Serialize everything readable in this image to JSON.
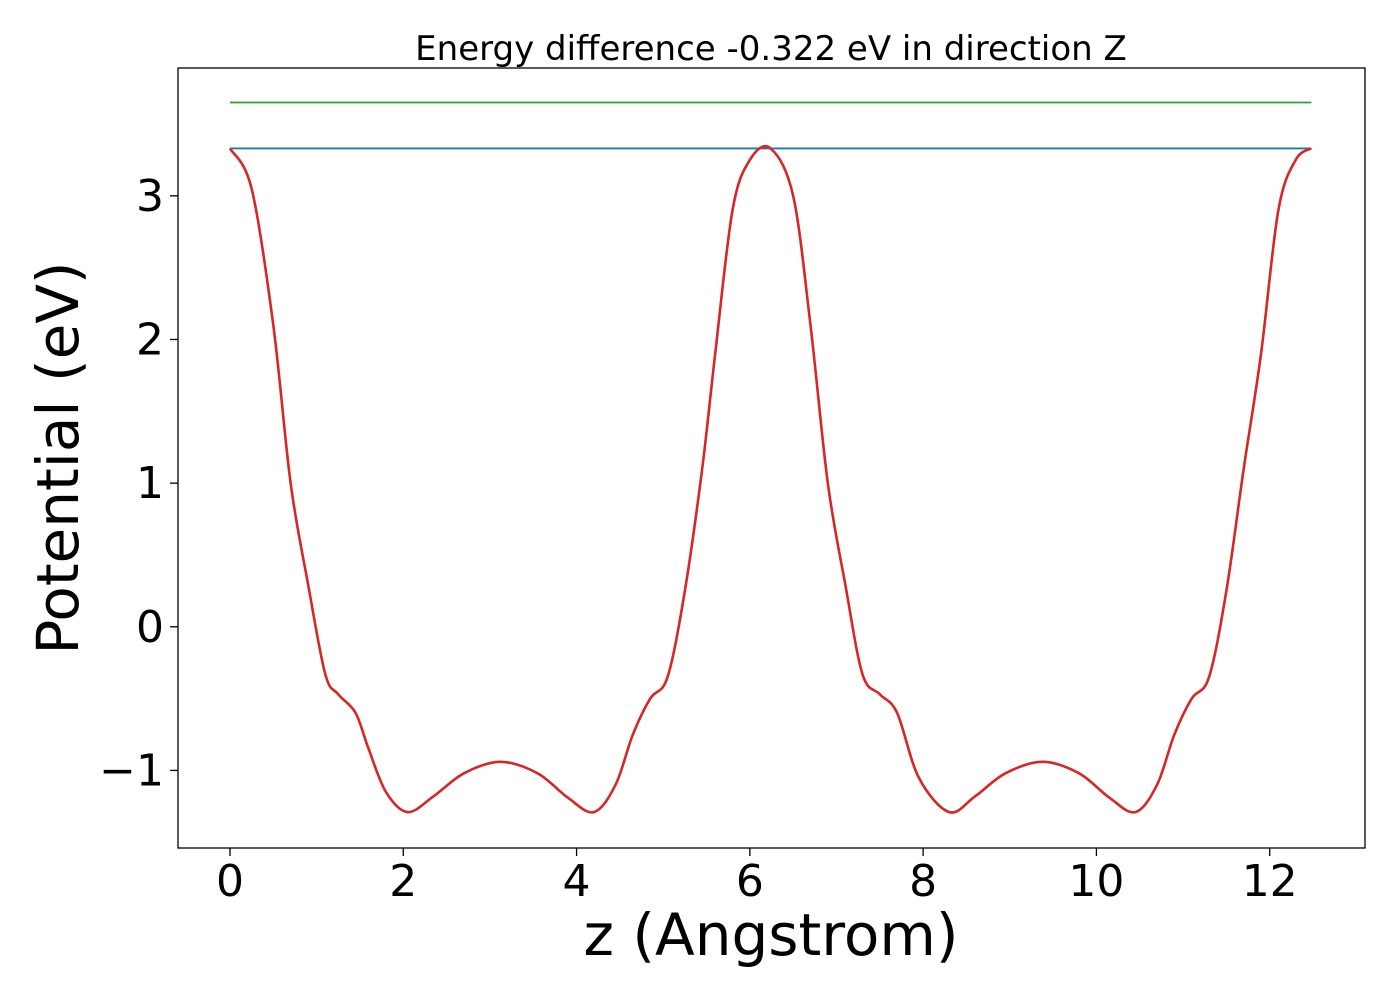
{
  "chart_data": {
    "type": "line",
    "title": "Energy difference -0.322 eV in direction Z",
    "xlabel": "z (Angstrom)",
    "ylabel": "Potential (eV)",
    "xlim": [
      -0.6,
      13.1
    ],
    "ylim": [
      -1.54,
      3.89
    ],
    "x_ticks": [
      0,
      2,
      4,
      6,
      8,
      10,
      12
    ],
    "x_tick_labels": [
      "0",
      "2",
      "4",
      "6",
      "8",
      "10",
      "12"
    ],
    "y_ticks": [
      -1,
      0,
      1,
      2,
      3
    ],
    "y_tick_labels": [
      "−1",
      "0",
      "1",
      "2",
      "3"
    ],
    "grid": false,
    "series": [
      {
        "color": "#d62728",
        "x": [
          0,
          0.25,
          0.5,
          0.7,
          0.9,
          1.1,
          1.25,
          1.45,
          1.6,
          1.8,
          2.05,
          2.35,
          2.7,
          3.12,
          3.55,
          3.9,
          4.2,
          4.45,
          4.65,
          4.85,
          5.05,
          5.25,
          5.45,
          5.6,
          5.8,
          6.0,
          6.24,
          6.5,
          6.7,
          6.9,
          7.1,
          7.3,
          7.5,
          7.7,
          7.95,
          8.3,
          8.6,
          8.95,
          9.38,
          9.8,
          10.15,
          10.45,
          10.7,
          10.9,
          11.1,
          11.3,
          11.5,
          11.7,
          11.9,
          12.1,
          12.3,
          12.48
        ],
        "y": [
          3.33,
          3.05,
          2.1,
          1.0,
          0.3,
          -0.33,
          -0.47,
          -0.6,
          -0.85,
          -1.15,
          -1.29,
          -1.18,
          -1.02,
          -0.94,
          -1.02,
          -1.19,
          -1.29,
          -1.1,
          -0.75,
          -0.5,
          -0.35,
          0.25,
          1.1,
          1.9,
          2.9,
          3.25,
          3.33,
          3.0,
          2.1,
          1.0,
          0.3,
          -0.33,
          -0.47,
          -0.6,
          -1.05,
          -1.29,
          -1.18,
          -1.02,
          -0.94,
          -1.02,
          -1.19,
          -1.29,
          -1.1,
          -0.75,
          -0.5,
          -0.35,
          0.25,
          1.1,
          1.9,
          2.9,
          3.25,
          3.33
        ]
      },
      {
        "color": "#1f77b4",
        "x": [
          0,
          12.48
        ],
        "y": [
          3.33,
          3.33
        ]
      },
      {
        "color": "#2ca02c",
        "x": [
          0,
          12.48
        ],
        "y": [
          3.65,
          3.65
        ]
      }
    ]
  }
}
